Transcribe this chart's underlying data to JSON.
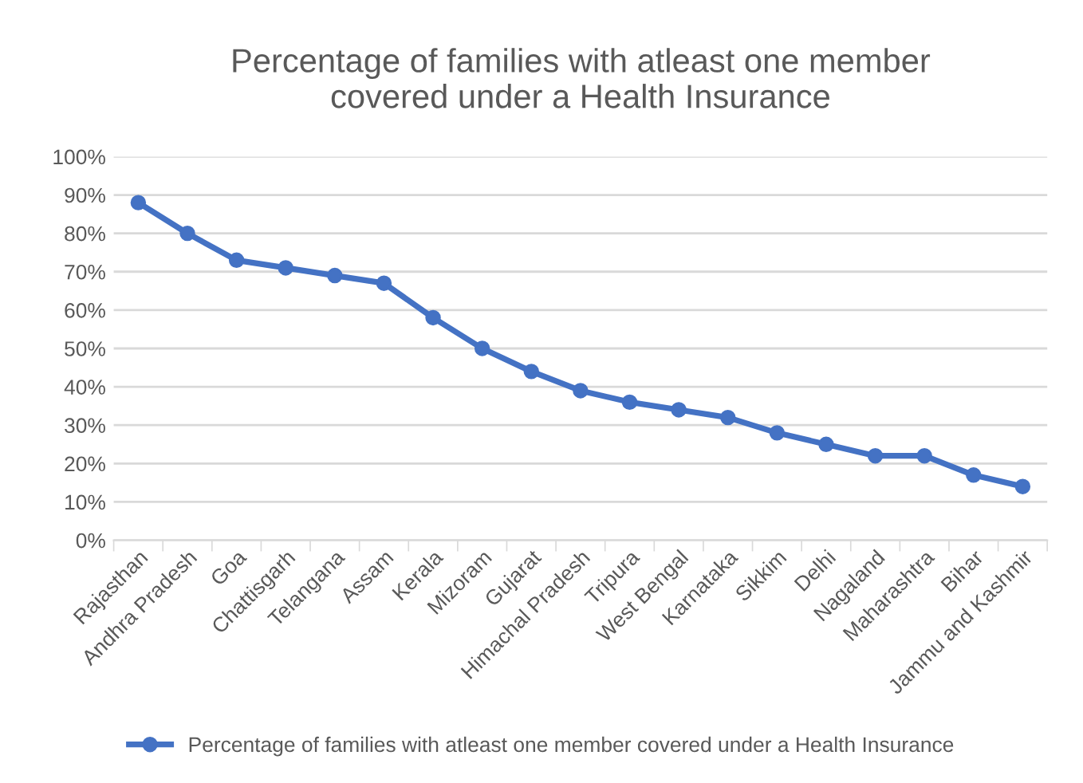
{
  "chart_data": {
    "type": "line",
    "title": "Percentage of families with atleast one member\ncovered under a Health Insurance",
    "categories": [
      "Rajasthan",
      "Andhra Pradesh",
      "Goa",
      "Chattisgarh",
      "Telangana",
      "Assam",
      "Kerala",
      "Mizoram",
      "Gujarat",
      "Himachal Pradesh",
      "Tripura",
      "West Bengal",
      "Karnataka",
      "Sikkim",
      "Delhi",
      "Nagaland",
      "Maharashtra",
      "Bihar",
      "Jammu and Kashmir"
    ],
    "series": [
      {
        "name": "Percentage of families with atleast one member covered under a Health Insurance",
        "color": "#4472c4",
        "values": [
          88,
          80,
          73,
          71,
          69,
          67,
          58,
          50,
          44,
          39,
          36,
          34,
          32,
          28,
          25,
          22,
          22,
          17,
          14
        ]
      }
    ],
    "ylim": [
      0,
      100
    ],
    "yticks": [
      {
        "value": 0,
        "label": "0%"
      },
      {
        "value": 10,
        "label": "10%"
      },
      {
        "value": 20,
        "label": "20%"
      },
      {
        "value": 30,
        "label": "30%"
      },
      {
        "value": 40,
        "label": "40%"
      },
      {
        "value": 50,
        "label": "50%"
      },
      {
        "value": 60,
        "label": "60%"
      },
      {
        "value": 70,
        "label": "70%"
      },
      {
        "value": 80,
        "label": "80%"
      },
      {
        "value": 90,
        "label": "90%"
      },
      {
        "value": 100,
        "label": "100%"
      }
    ],
    "grid": "y",
    "legend": "bottom",
    "marker": "circle",
    "line_style": "solid"
  }
}
